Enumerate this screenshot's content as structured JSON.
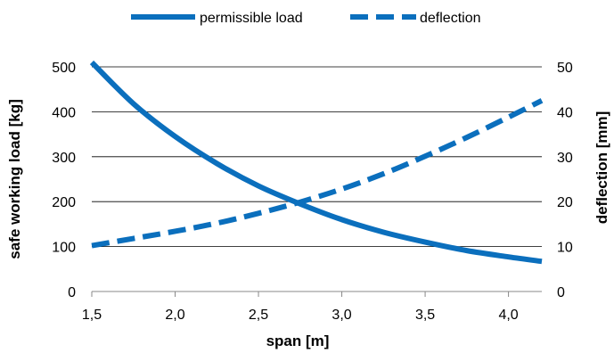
{
  "chart_data": {
    "type": "line",
    "title": "",
    "xlabel": "span [m]",
    "ylabel_left": "safe working load [kg]",
    "ylabel_right": "deflection [mm]",
    "xlim": [
      1.5,
      4.2
    ],
    "ylim_left": [
      0,
      500
    ],
    "ylim_right": [
      0,
      50
    ],
    "x_ticks": [
      "1,5",
      "2,0",
      "2,5",
      "3,0",
      "3,5",
      "4,0"
    ],
    "y_left_ticks": [
      "0",
      "100",
      "200",
      "300",
      "400",
      "500"
    ],
    "y_right_ticks": [
      "0",
      "10",
      "20",
      "30",
      "40",
      "50"
    ],
    "grid": "horizontal",
    "legend_position": "top",
    "series": [
      {
        "name": "permissible load",
        "axis": "left",
        "style": "solid",
        "color": "#0b6fbd",
        "x": [
          1.5,
          1.75,
          2.0,
          2.25,
          2.5,
          2.75,
          3.0,
          3.25,
          3.5,
          3.75,
          4.0,
          4.2
        ],
        "y": [
          510,
          418,
          345,
          285,
          235,
          195,
          160,
          132,
          110,
          91,
          77,
          67
        ]
      },
      {
        "name": "deflection",
        "axis": "right",
        "style": "dashed",
        "color": "#0b6fbd",
        "x": [
          1.5,
          1.75,
          2.0,
          2.25,
          2.5,
          2.75,
          3.0,
          3.25,
          3.5,
          3.75,
          4.0,
          4.2
        ],
        "y": [
          10.2,
          11.8,
          13.4,
          15.2,
          17.4,
          19.9,
          22.8,
          26.2,
          30.1,
          34.3,
          38.8,
          42.5
        ]
      }
    ]
  }
}
